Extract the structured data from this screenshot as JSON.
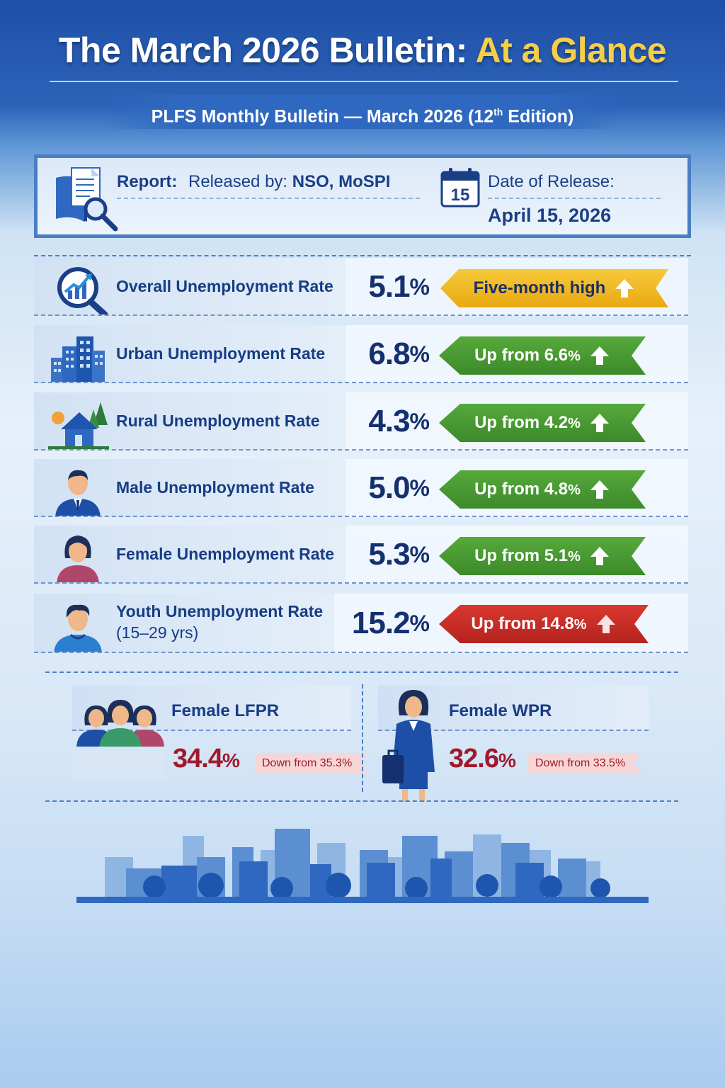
{
  "header": {
    "title_main": "The March 2026 Bulletin:",
    "title_accent": "At a Glance",
    "subtitle_prefix": "PLFS Monthly Bulletin — March 2026 (12",
    "subtitle_sup": "th",
    "subtitle_suffix": " Edition)"
  },
  "report": {
    "label": "Report:",
    "released_prefix": "Released by:",
    "released_by": "NSO, MoSPI",
    "calendar_day": "15",
    "date_label": "Date of Release:",
    "date_value": "April 15, 2026",
    "icon": "report-magnifier-icon"
  },
  "metrics": [
    {
      "label": "Overall Unemployment Rate",
      "value": "5.1",
      "unit": "%",
      "badge": "Five-month high",
      "badge_unit": "",
      "badge_color": "#f2bd2c",
      "icon": "chart-magnifier-icon"
    },
    {
      "label": "Urban Unemployment Rate",
      "value": "6.8",
      "unit": "%",
      "badge": "Up from 6.6",
      "badge_unit": "%",
      "badge_color": "#4a9c33",
      "icon": "city-buildings-icon"
    },
    {
      "label": "Rural Unemployment Rate",
      "value": "4.3",
      "unit": "%",
      "badge": "Up from 4.2",
      "badge_unit": "%",
      "badge_color": "#4a9c33",
      "icon": "rural-house-icon"
    },
    {
      "label": "Male Unemployment Rate",
      "value": "5.0",
      "unit": "%",
      "badge": "Up from 4.8",
      "badge_unit": "%",
      "badge_color": "#4a9c33",
      "icon": "man-icon"
    },
    {
      "label": "Female Unemployment Rate",
      "value": "5.3",
      "unit": "%",
      "badge": "Up from 5.1",
      "badge_unit": "%",
      "badge_color": "#4a9c33",
      "icon": "woman-icon"
    },
    {
      "label_line1": "Youth Unemployment Rate",
      "label_line2": "(15–29 yrs)",
      "value": "15.2",
      "unit": "%",
      "badge": "Up from 14.8",
      "badge_unit": "%",
      "badge_color": "#c72b25",
      "icon": "youth-icon"
    }
  ],
  "female_lfpr": {
    "title": "Female LFPR",
    "value": "34.4",
    "unit": "%",
    "change": "Down from 35.3%",
    "icon": "women-group-icon"
  },
  "female_wpr": {
    "title": "Female WPR",
    "value": "32.6",
    "unit": "%",
    "change": "Down from 33.5%",
    "icon": "businesswoman-icon"
  },
  "colors": {
    "header_blue": "#1e4fa6",
    "title_accent": "#f6cf4a",
    "text_navy": "#173d84",
    "decline_red": "#a0192a"
  }
}
